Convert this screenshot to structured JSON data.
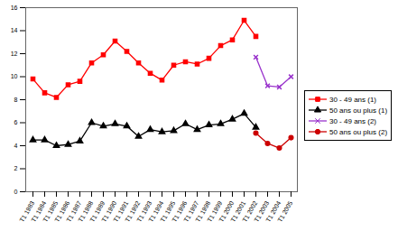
{
  "chart_data": {
    "type": "line",
    "categories": [
      "T1 1983",
      "T1 1984",
      "T1 1985",
      "T1 1986",
      "T1 1987",
      "T1 1988",
      "T1 1989",
      "T1 1990",
      "T1 1991",
      "T1 1992",
      "T1 1993",
      "T1 1994",
      "T1 1995",
      "T1 1996",
      "T1 1997",
      "T1 1998",
      "T1 1999",
      "T1 2000",
      "T1 2001",
      "T1 2002",
      "T1 2003",
      "T1 2004",
      "T1 2005"
    ],
    "series": [
      {
        "name": "30 - 49 ans (1)",
        "color": "#ff0000",
        "marker": "square",
        "values": [
          9.8,
          8.6,
          8.2,
          9.3,
          9.6,
          11.2,
          11.9,
          13.1,
          12.2,
          11.2,
          10.3,
          9.7,
          11.0,
          11.3,
          11.1,
          11.6,
          12.7,
          13.2,
          14.9,
          13.5,
          null,
          null,
          null
        ]
      },
      {
        "name": "50 ans ou plus (1)",
        "color": "#000000",
        "marker": "triangle",
        "values": [
          4.5,
          4.5,
          4.0,
          4.1,
          4.4,
          6.0,
          5.7,
          5.9,
          5.7,
          4.8,
          5.4,
          5.2,
          5.3,
          5.9,
          5.4,
          5.8,
          5.9,
          6.3,
          6.8,
          5.6,
          null,
          null,
          null
        ]
      },
      {
        "name": "30 - 49 ans (2)",
        "color": "#9933cc",
        "marker": "times",
        "values": [
          null,
          null,
          null,
          null,
          null,
          null,
          null,
          null,
          null,
          null,
          null,
          null,
          null,
          null,
          null,
          null,
          null,
          null,
          null,
          11.7,
          9.2,
          9.1,
          10.0
        ]
      },
      {
        "name": "50 ans ou plus (2)",
        "color": "#cc0000",
        "marker": "circle",
        "values": [
          null,
          null,
          null,
          null,
          null,
          null,
          null,
          null,
          null,
          null,
          null,
          null,
          null,
          null,
          null,
          null,
          null,
          null,
          null,
          5.1,
          4.2,
          3.8,
          4.7
        ]
      }
    ],
    "ylim": [
      0,
      16
    ],
    "yticks": [
      0,
      2,
      4,
      6,
      8,
      10,
      12,
      14,
      16
    ],
    "grid": false,
    "legend": "right"
  }
}
